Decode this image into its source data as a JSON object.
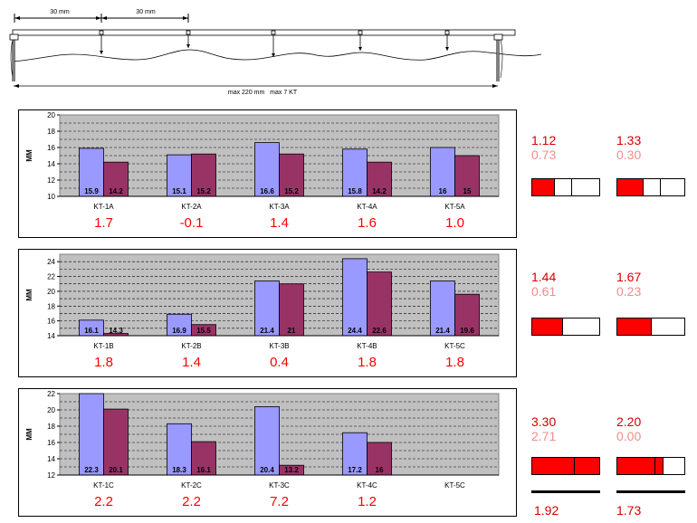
{
  "header": {
    "dim1": "30 mm",
    "dim2": "30 mm",
    "max_label": "max 220 mm   max 7 KT"
  },
  "chart_data": [
    {
      "type": "bar",
      "ylabel": "MM",
      "ylim": [
        10,
        20
      ],
      "yticks": [
        10,
        12,
        14,
        16,
        18,
        20
      ],
      "grid": true,
      "categories": [
        "KT-1A",
        "KT-2A",
        "KT-3A",
        "KT-4A",
        "KT-5A"
      ],
      "series": [
        {
          "values": [
            15.9,
            15.1,
            16.6,
            15.8,
            16
          ],
          "color": "#9999ff"
        },
        {
          "values": [
            14.2,
            15.2,
            15.2,
            14.2,
            15
          ],
          "color": "#993366"
        }
      ],
      "data_labels": [
        [
          "15.9",
          "15.1",
          "16.6",
          "15.8",
          "16"
        ],
        [
          "14.2",
          "15.2",
          "15.2",
          "14.2",
          "15"
        ]
      ],
      "differences": [
        "1.7",
        "-0.1",
        "1.4",
        "1.6",
        "1.0"
      ]
    },
    {
      "type": "bar",
      "ylabel": "MM",
      "ylim": [
        14,
        25
      ],
      "yticks": [
        14,
        16,
        18,
        20,
        22,
        24
      ],
      "grid": true,
      "categories": [
        "KT-1B",
        "KT-2B",
        "KT-3B",
        "KT-4B",
        "KT-5C"
      ],
      "series": [
        {
          "values": [
            16.1,
            16.9,
            21.4,
            24.4,
            21.4
          ],
          "color": "#9999ff"
        },
        {
          "values": [
            14.3,
            15.5,
            21,
            22.6,
            19.6
          ],
          "color": "#993366"
        }
      ],
      "data_labels": [
        [
          "16.1",
          "16.9",
          "21.4",
          "24.4",
          "21.4"
        ],
        [
          "14.3",
          "15.5",
          "21",
          "22.6",
          "19.6"
        ]
      ],
      "differences": [
        "1.8",
        "1.4",
        "0.4",
        "1.8",
        "1.8"
      ]
    },
    {
      "type": "bar",
      "ylabel": "MM",
      "ylim": [
        12,
        22
      ],
      "yticks": [
        12,
        14,
        16,
        18,
        20,
        22
      ],
      "grid": true,
      "categories": [
        "KT-1C",
        "KT-2C",
        "KT-3C",
        "KT-4C",
        "KT-5C"
      ],
      "series": [
        {
          "values": [
            22.3,
            18.3,
            20.4,
            17.2,
            null
          ],
          "color": "#9999ff"
        },
        {
          "values": [
            20.1,
            16.1,
            13.2,
            16,
            null
          ],
          "color": "#993366"
        }
      ],
      "data_labels": [
        [
          "22.3",
          "18.3",
          "20.4",
          "17.2",
          ""
        ],
        [
          "20.1",
          "16.1",
          "13.2",
          "16",
          ""
        ]
      ],
      "differences": [
        "2.2",
        "2.2",
        "7.2",
        "1.2",
        ""
      ]
    }
  ],
  "side_stats": [
    [
      {
        "v1": "1.12",
        "v2": "0.73",
        "fill": 0.33,
        "ticks": [
          0.33,
          0.58
        ]
      },
      {
        "v1": "1.33",
        "v2": "0.30",
        "fill": 0.38,
        "ticks": [
          0.38,
          0.63
        ]
      }
    ],
    [
      {
        "v1": "1.44",
        "v2": "0.61",
        "fill": 0.45,
        "ticks": [
          0.45
        ]
      },
      {
        "v1": "1.67",
        "v2": "0.23",
        "fill": 0.5,
        "ticks": [
          0.5
        ]
      }
    ],
    [
      {
        "v1": "3.30",
        "v2": "2.71",
        "fill": 1.0,
        "ticks": [
          0.62
        ]
      },
      {
        "v1": "2.20",
        "v2": "0.00",
        "fill": 0.68,
        "ticks": [
          0.55,
          0.68
        ]
      }
    ]
  ],
  "totals": [
    "1.92",
    "1.73"
  ],
  "colors": {
    "series1": "#9999ff",
    "series2": "#993366",
    "plot_bg": "#c0c0c0",
    "accent": "#ff0000"
  }
}
